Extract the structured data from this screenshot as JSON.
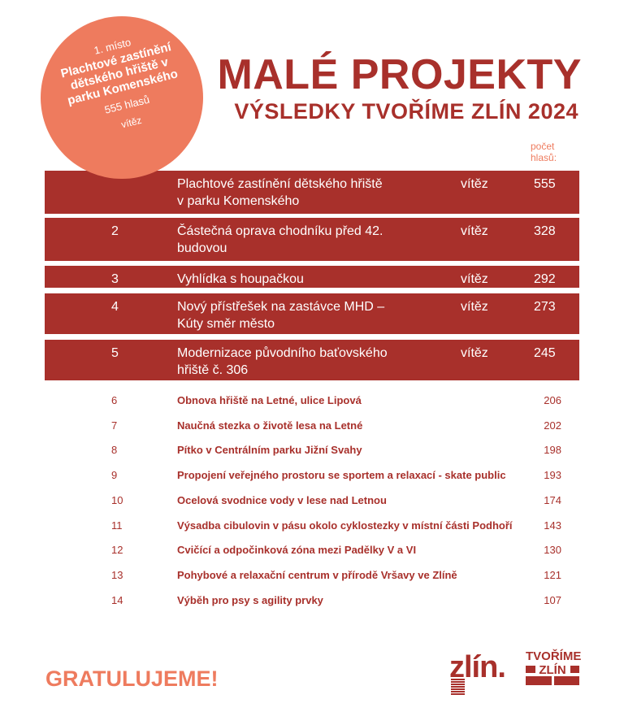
{
  "header": {
    "title": "MALÉ PROJEKTY",
    "subtitle": "VÝSLEDKY TVOŘÍME ZLÍN 2024",
    "votes_label": "počet hlasů:"
  },
  "badge": {
    "place": "1. místo",
    "name": "Plachtové zastínění dětského hřiště v parku Komenského",
    "votes": "555 hlasů",
    "status": "vítěz"
  },
  "winners": [
    {
      "rank": "",
      "name": "Plachtové zastínění dětského hřiště v parku Komenského",
      "status": "vítěz",
      "votes": "555"
    },
    {
      "rank": "2",
      "name": "Částečná oprava chodníku před 42. budovou",
      "status": "vítěz",
      "votes": "328"
    },
    {
      "rank": "3",
      "name": "Vyhlídka s houpačkou",
      "status": "vítěz",
      "votes": "292"
    },
    {
      "rank": "4",
      "name": "Nový přístřešek na zastávce MHD – Kúty směr město",
      "status": "vítěz",
      "votes": "273"
    },
    {
      "rank": "5",
      "name": "Modernizace původního baťovského hřiště č. 306",
      "status": "vítěz",
      "votes": "245"
    }
  ],
  "others": [
    {
      "rank": "6",
      "name": "Obnova hřiště na Letné, ulice Lipová",
      "votes": "206"
    },
    {
      "rank": "7",
      "name": "Naučná stezka o životě lesa na Letné",
      "votes": "202"
    },
    {
      "rank": "8",
      "name": "Pítko v Centrálním parku Jižní Svahy",
      "votes": "198"
    },
    {
      "rank": "9",
      "name": "Propojení veřejného prostoru se sportem a relaxací - skate public",
      "votes": "193"
    },
    {
      "rank": "10",
      "name": "Ocelová svodnice vody v lese nad Letnou",
      "votes": "174"
    },
    {
      "rank": "11",
      "name": "Výsadba cibulovin v pásu okolo cyklostezky v místní části Podhoří",
      "votes": "143"
    },
    {
      "rank": "12",
      "name": "Cvičící a odpočinková zóna mezi Padělky V a VI",
      "votes": "130"
    },
    {
      "rank": "13",
      "name": "Pohybové a relaxační centrum v přírodě Vršavy ve Zlíně",
      "votes": "121"
    },
    {
      "rank": "14",
      "name": "Výběh pro psy s agility prvky",
      "votes": "107"
    }
  ],
  "footer": {
    "congrats": "GRATULUJEME!",
    "logo_zlin": "zlín.",
    "logo_tz_line1": "TVOŘÍME",
    "logo_tz_line2": "ZLÍN"
  },
  "colors": {
    "primary": "#a8302b",
    "accent": "#ee7b5e"
  }
}
